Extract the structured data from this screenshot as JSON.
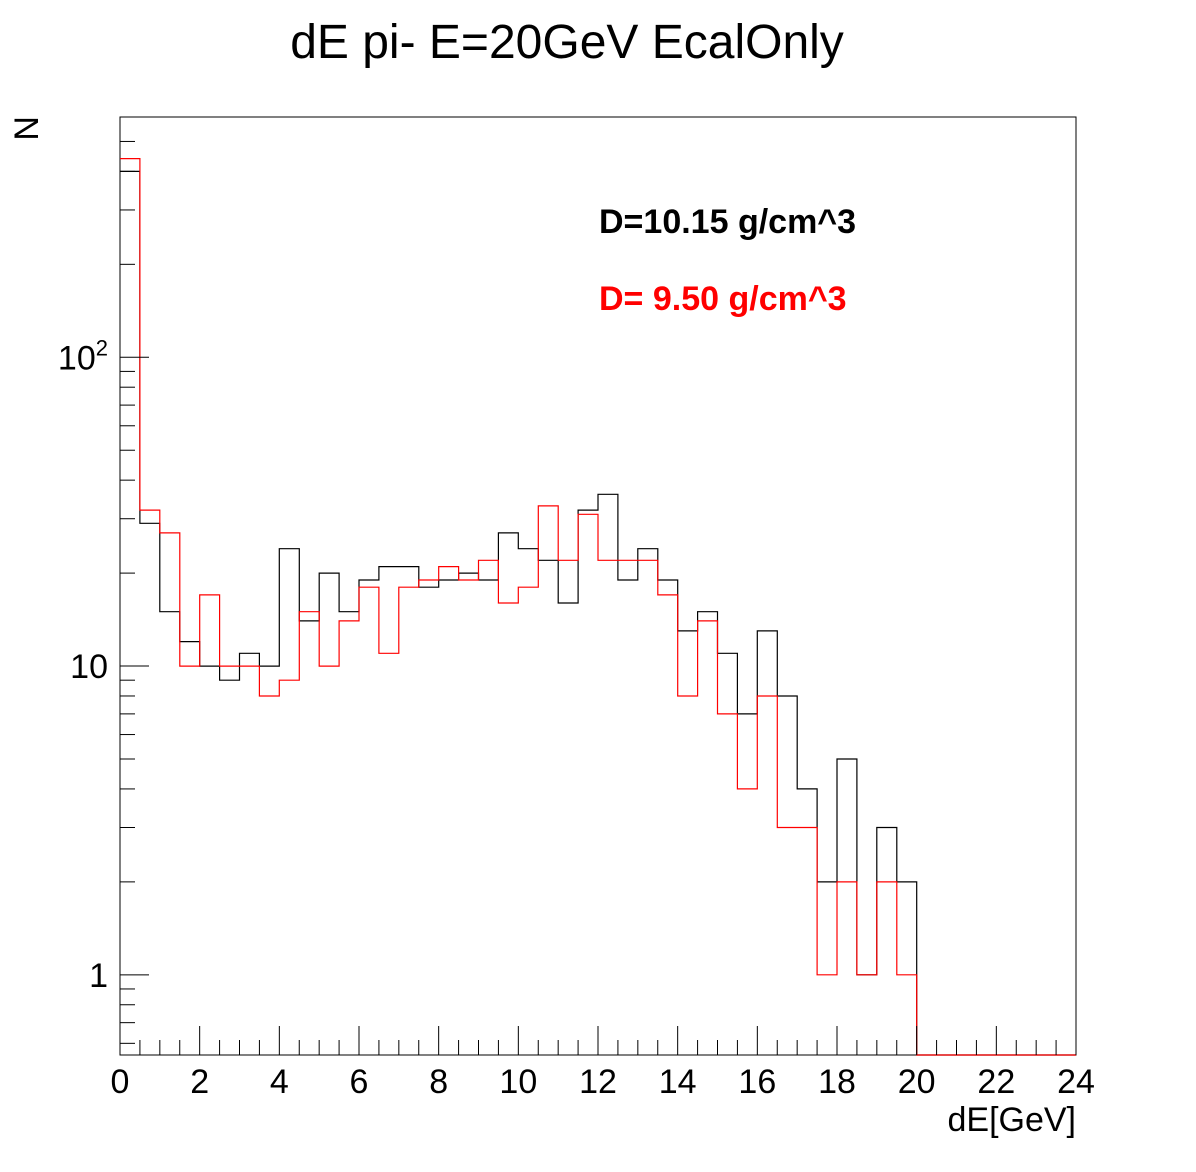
{
  "chart_data": {
    "type": "histogram",
    "title": "dE pi- E=20GeV EcalOnly",
    "xlabel": "dE[GeV]",
    "ylabel": "N",
    "xlim": [
      0,
      24
    ],
    "ylim": [
      0.55,
      600
    ],
    "yscale": "log",
    "grid": false,
    "x_ticks": [
      "0",
      "2",
      "4",
      "6",
      "8",
      "10",
      "12",
      "14",
      "16",
      "18",
      "20",
      "22",
      "24"
    ],
    "y_ticks": [
      {
        "value": 1,
        "base": "1",
        "exp": ""
      },
      {
        "value": 10,
        "base": "10",
        "exp": ""
      },
      {
        "value": 100,
        "base": "10",
        "exp": "2"
      }
    ],
    "bin_width": 0.5,
    "series": [
      {
        "name": "D=10.15 g/cm^3",
        "color": "#000000",
        "x_start": 0,
        "values": [
          400,
          29,
          15,
          12,
          10,
          9,
          11,
          10,
          24,
          14,
          20,
          15,
          19,
          21,
          21,
          18,
          19,
          20,
          19,
          27,
          24,
          22,
          16,
          32,
          36,
          19,
          24,
          19,
          13,
          15,
          11,
          7,
          13,
          8,
          4,
          2,
          5,
          1,
          3,
          2,
          0,
          0,
          0,
          0,
          0,
          0,
          0,
          0
        ]
      },
      {
        "name": "D= 9.50 g/cm^3",
        "color": "#ff0000",
        "x_start": 0,
        "values": [
          440,
          32,
          27,
          10,
          17,
          10,
          10,
          8,
          9,
          15,
          10,
          14,
          18,
          11,
          18,
          19,
          21,
          19,
          22,
          16,
          18,
          33,
          22,
          31,
          22,
          22,
          22,
          17,
          8,
          14,
          7,
          4,
          8,
          3,
          3,
          1,
          2,
          1,
          2,
          1,
          0,
          0,
          0,
          0,
          0,
          0,
          0,
          0
        ]
      }
    ]
  }
}
